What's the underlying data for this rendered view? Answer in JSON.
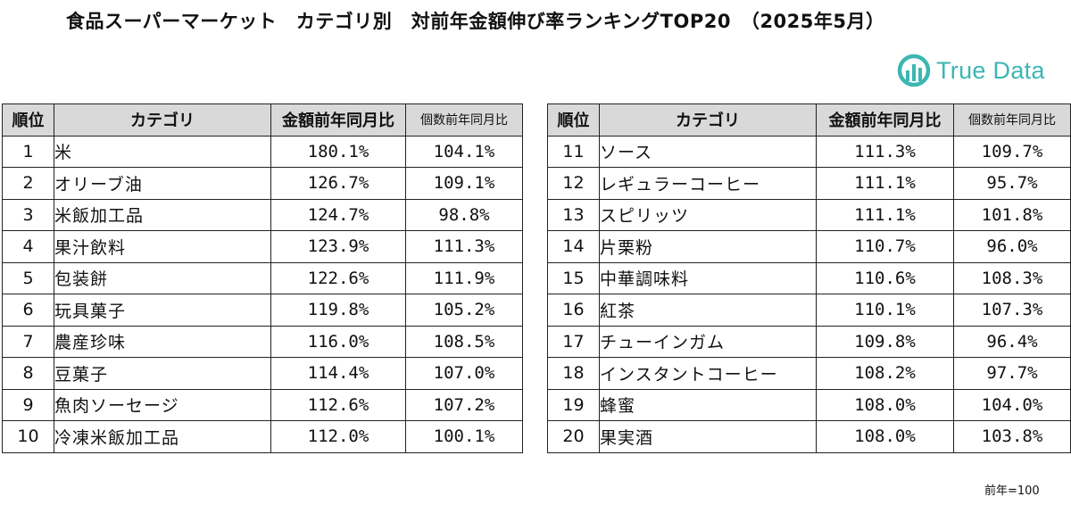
{
  "title": "食品スーパーマーケット　カテゴリ別　対前年金額伸び率ランキングTOP20　（2025年5月）",
  "logo": {
    "text": "True Data",
    "icon": "truedata-logo-icon",
    "color": "#3cb6b2"
  },
  "headers": {
    "rank": "順位",
    "category": "カテゴリ",
    "amount": "金額前年同月比",
    "count": "個数前年同月比"
  },
  "left_rows": [
    {
      "rank": "1",
      "category": "米",
      "amount": "180.1%",
      "count": "104.1%"
    },
    {
      "rank": "2",
      "category": "オリーブ油",
      "amount": "126.7%",
      "count": "109.1%"
    },
    {
      "rank": "3",
      "category": "米飯加工品",
      "amount": "124.7%",
      "count": "98.8%"
    },
    {
      "rank": "4",
      "category": "果汁飲料",
      "amount": "123.9%",
      "count": "111.3%"
    },
    {
      "rank": "5",
      "category": "包装餅",
      "amount": "122.6%",
      "count": "111.9%"
    },
    {
      "rank": "6",
      "category": "玩具菓子",
      "amount": "119.8%",
      "count": "105.2%"
    },
    {
      "rank": "7",
      "category": "農産珍味",
      "amount": "116.0%",
      "count": "108.5%"
    },
    {
      "rank": "8",
      "category": "豆菓子",
      "amount": "114.4%",
      "count": "107.0%"
    },
    {
      "rank": "9",
      "category": "魚肉ソーセージ",
      "amount": "112.6%",
      "count": "107.2%"
    },
    {
      "rank": "10",
      "category": "冷凍米飯加工品",
      "amount": "112.0%",
      "count": "100.1%"
    }
  ],
  "right_rows": [
    {
      "rank": "11",
      "category": "ソース",
      "amount": "111.3%",
      "count": "109.7%"
    },
    {
      "rank": "12",
      "category": "レギュラーコーヒー",
      "amount": "111.1%",
      "count": "95.7%"
    },
    {
      "rank": "13",
      "category": "スピリッツ",
      "amount": "111.1%",
      "count": "101.8%"
    },
    {
      "rank": "14",
      "category": "片栗粉",
      "amount": "110.7%",
      "count": "96.0%"
    },
    {
      "rank": "15",
      "category": "中華調味料",
      "amount": "110.6%",
      "count": "108.3%"
    },
    {
      "rank": "16",
      "category": "紅茶",
      "amount": "110.1%",
      "count": "107.3%"
    },
    {
      "rank": "17",
      "category": "チューインガム",
      "amount": "109.8%",
      "count": "96.4%"
    },
    {
      "rank": "18",
      "category": "インスタントコーヒー",
      "amount": "108.2%",
      "count": "97.7%"
    },
    {
      "rank": "19",
      "category": "蜂蜜",
      "amount": "108.0%",
      "count": "104.0%"
    },
    {
      "rank": "20",
      "category": "果実酒",
      "amount": "108.0%",
      "count": "103.8%"
    }
  ],
  "footnote": "前年=100"
}
